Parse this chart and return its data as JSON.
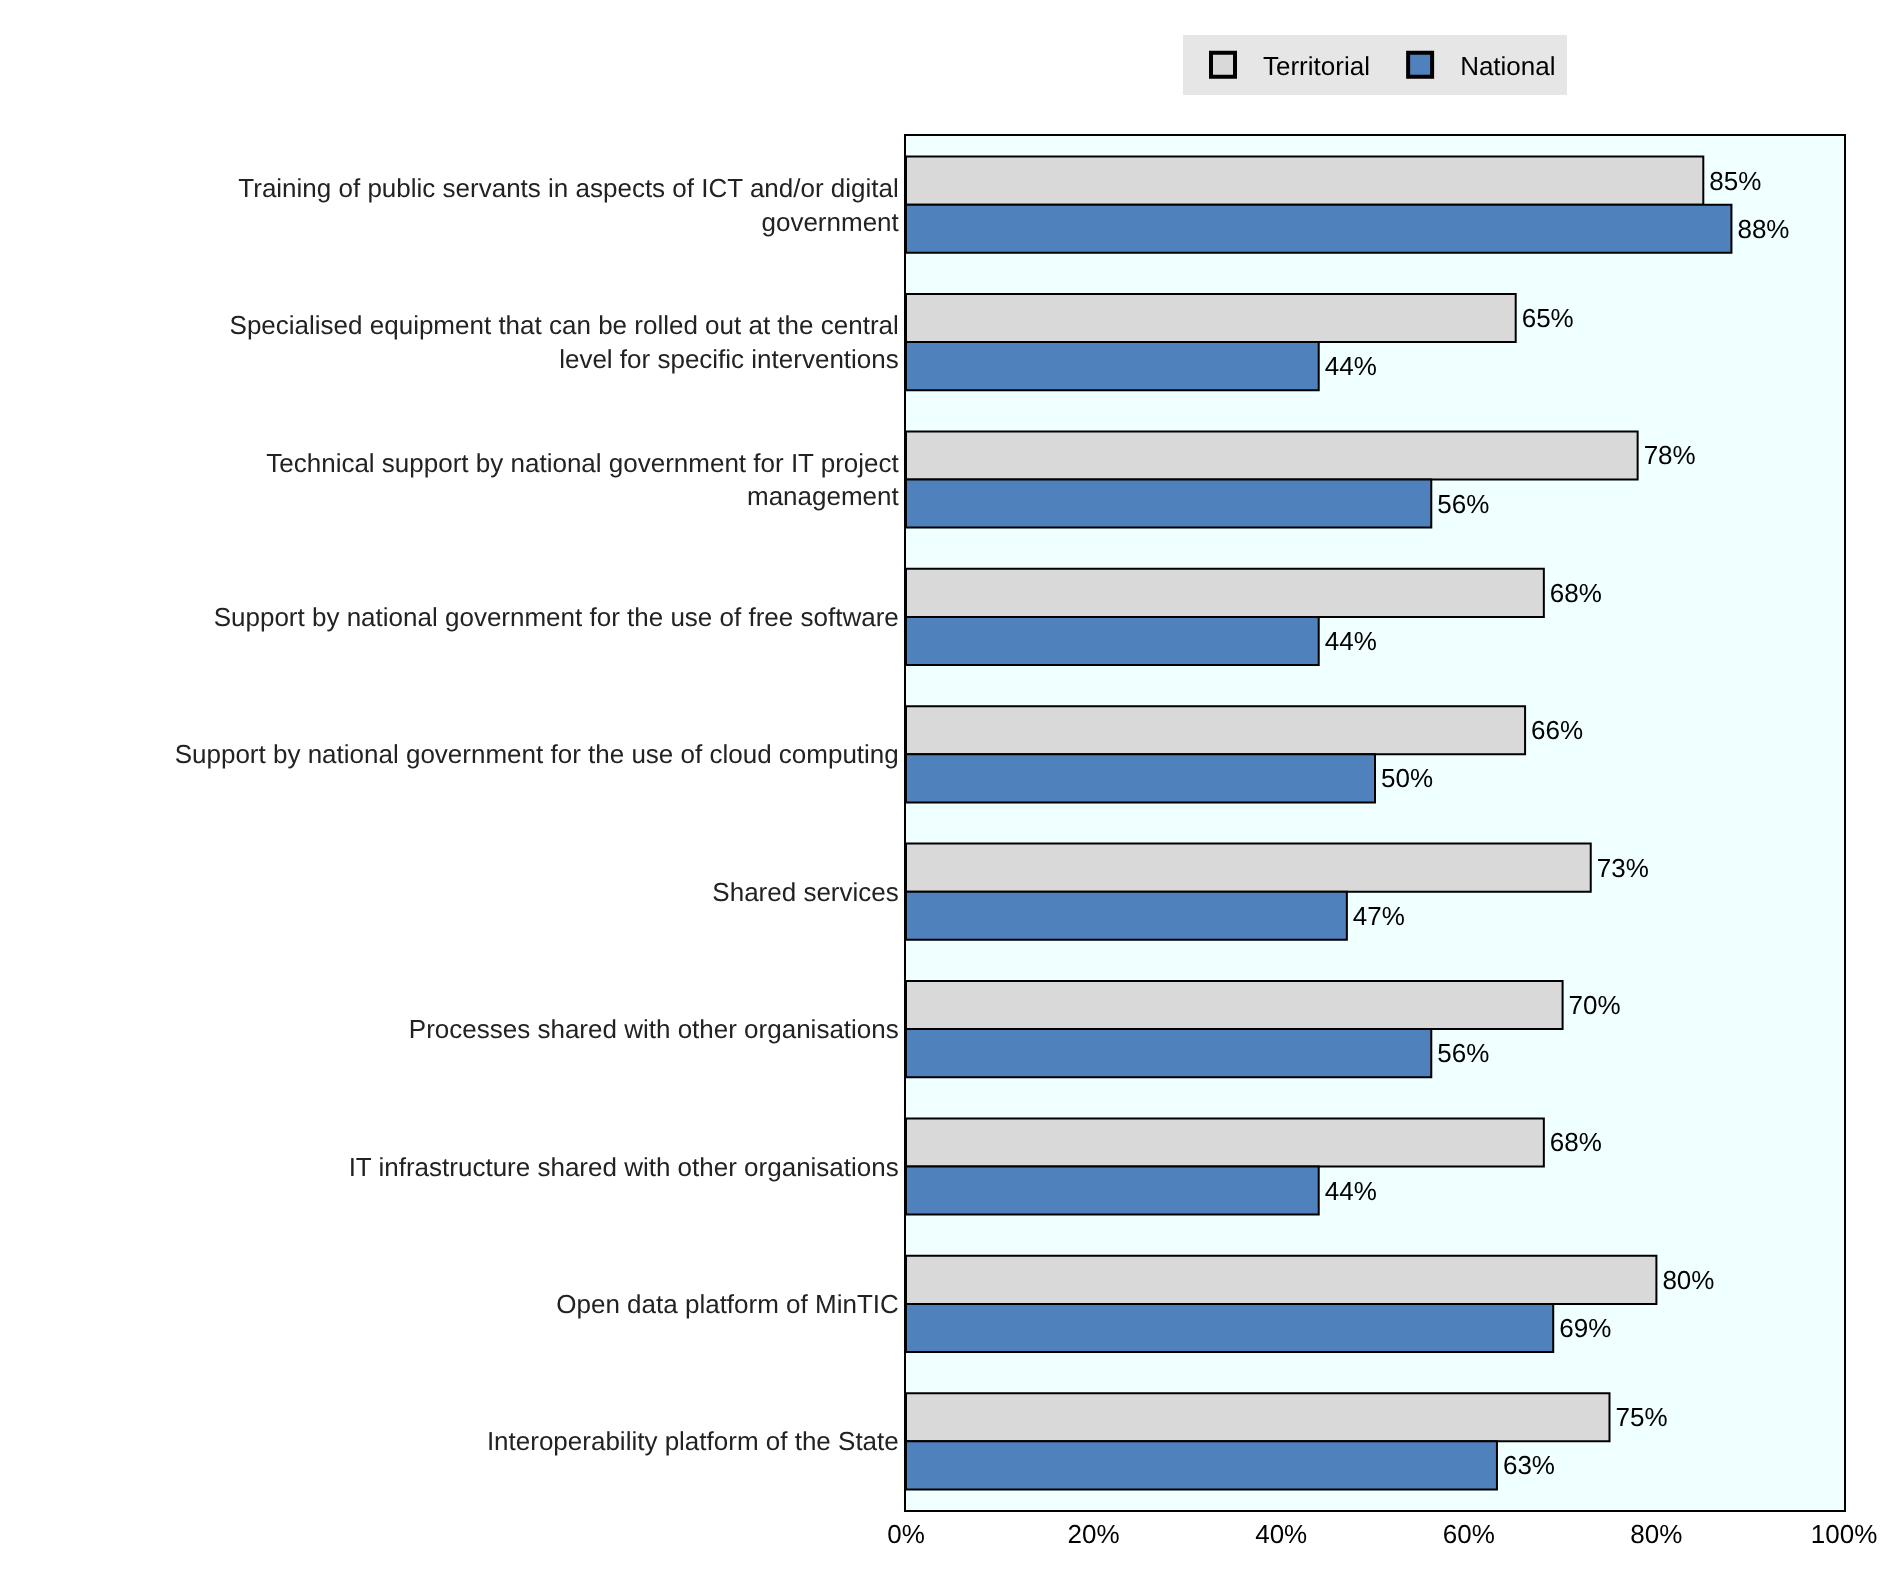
{
  "chart_data": {
    "type": "bar",
    "orientation": "horizontal",
    "legend": "top",
    "grid": false,
    "categories": [
      "Training of public servants in aspects of ICT and/or digital government",
      "Specialised equipment that can be rolled out at the central level for specific interventions",
      "Technical support by national government for IT project management",
      "Support by national government for the use of free software",
      "Support by national government for the use of cloud computing",
      "Shared services",
      "Processes shared with other organisations",
      "IT infrastructure shared with other organisations",
      "Open data platform of MinTIC",
      "Interoperability platform of the State"
    ],
    "series": [
      {
        "name": "Territorial",
        "color": "#d9d9d9",
        "values": [
          85,
          65,
          78,
          68,
          66,
          73,
          70,
          68,
          80,
          75
        ],
        "value_labels": [
          "85%",
          "65%",
          "78%",
          "68%",
          "66%",
          "73%",
          "70%",
          "68%",
          "80%",
          "75%"
        ]
      },
      {
        "name": "National",
        "color": "#4f81bd",
        "values": [
          88,
          44,
          56,
          44,
          50,
          47,
          56,
          44,
          69,
          63
        ],
        "value_labels": [
          "88%",
          "44%",
          "56%",
          "44%",
          "50%",
          "47%",
          "56%",
          "44%",
          "69%",
          "63%"
        ]
      }
    ],
    "xlim": [
      0,
      100
    ],
    "xticks": [
      {
        "value": 0,
        "label": "0%"
      },
      {
        "value": 20,
        "label": "20%"
      },
      {
        "value": 40,
        "label": "40%"
      },
      {
        "value": 60,
        "label": "60%"
      },
      {
        "value": 80,
        "label": "80%"
      },
      {
        "value": 100,
        "label": "100%"
      }
    ]
  }
}
